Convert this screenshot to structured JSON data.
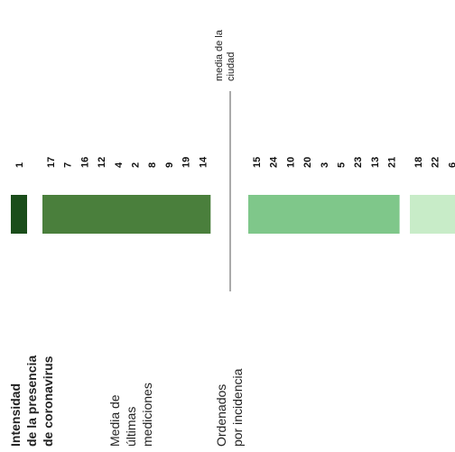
{
  "chart_data": {
    "type": "bar",
    "orientation": "rotated",
    "title_lines": [
      "Intensidad",
      "de la presencia",
      "de coronavirus"
    ],
    "subtitle_lines": [
      "Media de",
      "últimas",
      "mediciones"
    ],
    "order_lines": [
      "Ordenados",
      "por incidencia"
    ],
    "avg_label_lines": [
      "media de la",
      "ciudad"
    ],
    "groups": [
      {
        "ids": [
          "1"
        ],
        "color": "#1a4d1a"
      },
      {
        "ids": [
          "17",
          "7",
          "16",
          "12",
          "4",
          "2",
          "8",
          "9",
          "19",
          "14"
        ],
        "color": "#4a7f3c"
      },
      {
        "ids": [
          "15",
          "24",
          "10",
          "20",
          "3",
          "5",
          "23",
          "13",
          "21"
        ],
        "color": "#7fc78a"
      },
      {
        "ids": [
          "18",
          "22",
          "6"
        ],
        "color": "#c8ecc8"
      }
    ]
  }
}
